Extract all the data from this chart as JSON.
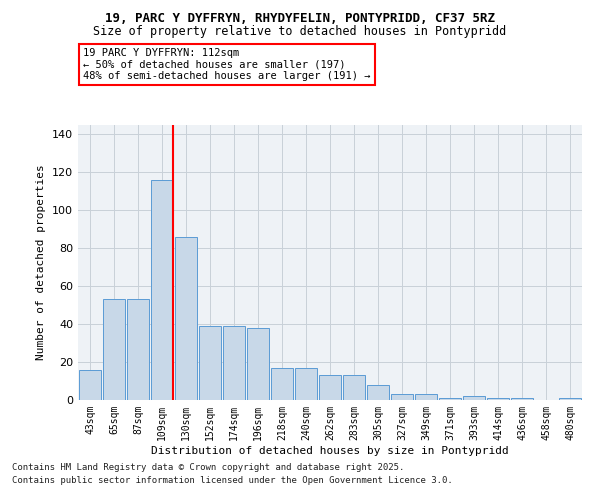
{
  "title_line1": "19, PARC Y DYFFRYN, RHYDYFELIN, PONTYPRIDD, CF37 5RZ",
  "title_line2": "Size of property relative to detached houses in Pontypridd",
  "xlabel": "Distribution of detached houses by size in Pontypridd",
  "ylabel": "Number of detached properties",
  "categories": [
    "43sqm",
    "65sqm",
    "87sqm",
    "109sqm",
    "130sqm",
    "152sqm",
    "174sqm",
    "196sqm",
    "218sqm",
    "240sqm",
    "262sqm",
    "283sqm",
    "305sqm",
    "327sqm",
    "349sqm",
    "371sqm",
    "393sqm",
    "414sqm",
    "436sqm",
    "458sqm",
    "480sqm"
  ],
  "values": [
    16,
    53,
    53,
    116,
    86,
    39,
    39,
    38,
    17,
    17,
    13,
    13,
    8,
    3,
    3,
    1,
    2,
    1,
    1,
    0,
    1
  ],
  "bar_color": "#c8d8e8",
  "bar_edge_color": "#5b9bd5",
  "annotation_text": "19 PARC Y DYFFRYN: 112sqm\n← 50% of detached houses are smaller (197)\n48% of semi-detached houses are larger (191) →",
  "red_line_color": "red",
  "ylim": [
    0,
    145
  ],
  "yticks": [
    0,
    20,
    40,
    60,
    80,
    100,
    120,
    140
  ],
  "footer_line1": "Contains HM Land Registry data © Crown copyright and database right 2025.",
  "footer_line2": "Contains public sector information licensed under the Open Government Licence 3.0.",
  "background_color": "#eef2f6",
  "grid_color": "#c8d0d8",
  "title_fontsize": 9,
  "axis_fontsize": 8,
  "tick_fontsize": 7
}
